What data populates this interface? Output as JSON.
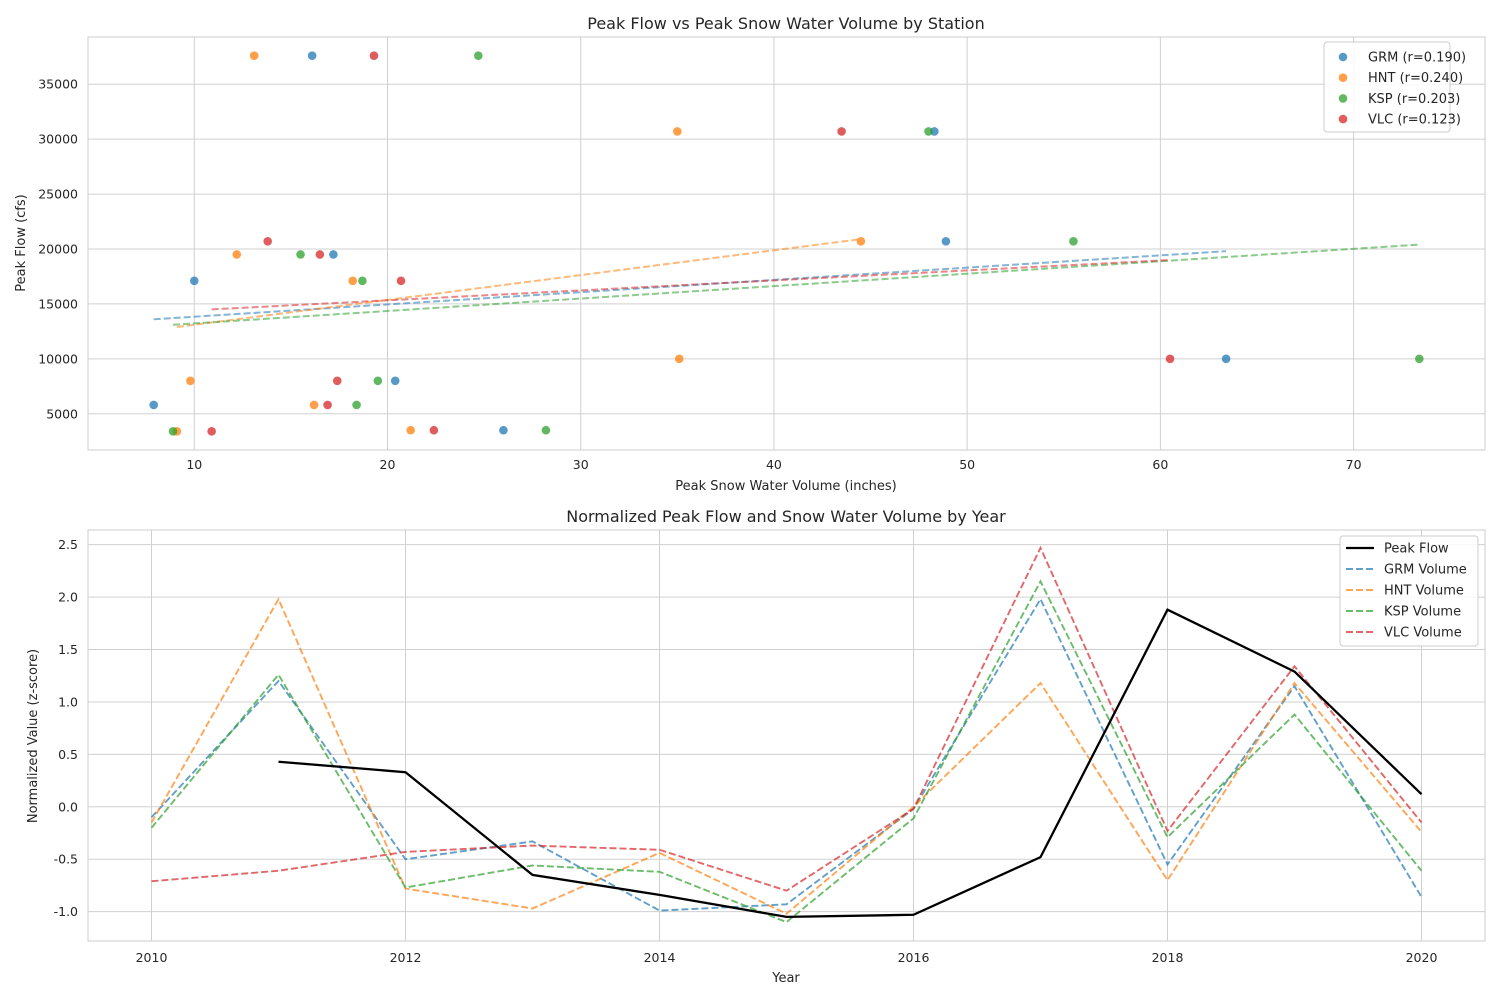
{
  "chart_data": [
    {
      "type": "scatter",
      "title": "Peak Flow vs Peak Snow Water Volume by Station",
      "xlabel": "Peak Snow Water Volume (inches)",
      "ylabel": "Peak Flow (cfs)",
      "xlim": [
        4.5,
        76.8
      ],
      "ylim": [
        1700,
        39300
      ],
      "xticks": [
        10,
        20,
        30,
        40,
        50,
        60,
        70
      ],
      "yticks": [
        5000,
        10000,
        15000,
        20000,
        25000,
        30000,
        35000
      ],
      "grid": true,
      "legend_position": "top-right",
      "series": [
        {
          "name": "GRM (r=0.190)",
          "color": "#1f77b4",
          "points": [
            [
              7.9,
              5800
            ],
            [
              10.0,
              17100
            ],
            [
              16.1,
              37600
            ],
            [
              17.2,
              19500
            ],
            [
              20.4,
              8000
            ],
            [
              26.0,
              3500
            ],
            [
              48.3,
              30700
            ],
            [
              48.9,
              20700
            ],
            [
              63.4,
              10000
            ]
          ],
          "trend": [
            [
              7.9,
              13600
            ],
            [
              63.4,
              19800
            ]
          ]
        },
        {
          "name": "HNT (r=0.240)",
          "color": "#ff7f0e",
          "points": [
            [
              9.1,
              3400
            ],
            [
              9.8,
              8000
            ],
            [
              12.2,
              19500
            ],
            [
              13.1,
              37600
            ],
            [
              16.2,
              5800
            ],
            [
              18.2,
              17100
            ],
            [
              21.2,
              3500
            ],
            [
              35.0,
              30700
            ],
            [
              35.1,
              10000
            ],
            [
              44.5,
              20700
            ]
          ],
          "trend": [
            [
              9.1,
              12900
            ],
            [
              44.5,
              20900
            ]
          ]
        },
        {
          "name": "KSP (r=0.203)",
          "color": "#2ca02c",
          "points": [
            [
              8.9,
              3400
            ],
            [
              15.5,
              19500
            ],
            [
              18.4,
              5800
            ],
            [
              18.7,
              17100
            ],
            [
              19.5,
              8000
            ],
            [
              24.7,
              37600
            ],
            [
              28.2,
              3500
            ],
            [
              48.0,
              30700
            ],
            [
              55.5,
              20700
            ],
            [
              73.4,
              10000
            ]
          ],
          "trend": [
            [
              8.9,
              13100
            ],
            [
              73.4,
              20400
            ]
          ]
        },
        {
          "name": "VLC (r=0.123)",
          "color": "#d62728",
          "points": [
            [
              10.9,
              3400
            ],
            [
              13.8,
              20700
            ],
            [
              16.5,
              19500
            ],
            [
              16.9,
              5800
            ],
            [
              17.4,
              8000
            ],
            [
              19.3,
              37600
            ],
            [
              20.7,
              17100
            ],
            [
              22.4,
              3500
            ],
            [
              43.5,
              30700
            ],
            [
              60.5,
              10000
            ]
          ],
          "trend": [
            [
              10.9,
              14500
            ],
            [
              60.5,
              19000
            ]
          ]
        }
      ]
    },
    {
      "type": "line",
      "title": "Normalized Peak Flow and Snow Water Volume by Year",
      "xlabel": "Year",
      "ylabel": "Normalized Value (z-score)",
      "xlim": [
        2009.5,
        2020.5
      ],
      "ylim": [
        -1.28,
        2.64
      ],
      "xticks": [
        2010,
        2012,
        2014,
        2016,
        2018,
        2020
      ],
      "yticks": [
        -1.0,
        -0.5,
        0.0,
        0.5,
        1.0,
        1.5,
        2.0,
        2.5
      ],
      "grid": true,
      "legend_position": "top-right",
      "series": [
        {
          "name": "Peak Flow",
          "color": "#000000",
          "style": "solid",
          "points": [
            [
              2011,
              0.43
            ],
            [
              2012,
              0.33
            ],
            [
              2013,
              -0.65
            ],
            [
              2014,
              -0.84
            ],
            [
              2015,
              -1.05
            ],
            [
              2016,
              -1.03
            ],
            [
              2017,
              -0.48
            ],
            [
              2018,
              1.88
            ],
            [
              2019,
              1.29
            ],
            [
              2020,
              0.12
            ]
          ]
        },
        {
          "name": "GRM Volume",
          "color": "#1f77b4",
          "style": "dashed",
          "points": [
            [
              2010,
              -0.1
            ],
            [
              2011,
              1.2
            ],
            [
              2012,
              -0.5
            ],
            [
              2013,
              -0.33
            ],
            [
              2014,
              -0.99
            ],
            [
              2015,
              -0.93
            ],
            [
              2016,
              -0.02
            ],
            [
              2017,
              1.98
            ],
            [
              2018,
              -0.55
            ],
            [
              2019,
              1.15
            ],
            [
              2020,
              -0.86
            ]
          ]
        },
        {
          "name": "HNT Volume",
          "color": "#ff7f0e",
          "style": "dashed",
          "points": [
            [
              2010,
              -0.15
            ],
            [
              2011,
              1.98
            ],
            [
              2012,
              -0.78
            ],
            [
              2013,
              -0.97
            ],
            [
              2014,
              -0.44
            ],
            [
              2015,
              -1.02
            ],
            [
              2016,
              0.0
            ],
            [
              2017,
              1.18
            ],
            [
              2018,
              -0.7
            ],
            [
              2019,
              1.18
            ],
            [
              2020,
              -0.24
            ]
          ]
        },
        {
          "name": "KSP Volume",
          "color": "#2ca02c",
          "style": "dashed",
          "points": [
            [
              2010,
              -0.2
            ],
            [
              2011,
              1.26
            ],
            [
              2012,
              -0.77
            ],
            [
              2013,
              -0.56
            ],
            [
              2014,
              -0.62
            ],
            [
              2015,
              -1.1
            ],
            [
              2016,
              -0.11
            ],
            [
              2017,
              2.15
            ],
            [
              2018,
              -0.29
            ],
            [
              2019,
              0.88
            ],
            [
              2020,
              -0.61
            ]
          ]
        },
        {
          "name": "VLC Volume",
          "color": "#d62728",
          "style": "dashed",
          "points": [
            [
              2010,
              -0.71
            ],
            [
              2011,
              -0.61
            ],
            [
              2012,
              -0.43
            ],
            [
              2013,
              -0.37
            ],
            [
              2014,
              -0.41
            ],
            [
              2015,
              -0.8
            ],
            [
              2016,
              -0.02
            ],
            [
              2017,
              2.47
            ],
            [
              2018,
              -0.23
            ],
            [
              2019,
              1.34
            ],
            [
              2020,
              -0.15
            ]
          ]
        }
      ]
    }
  ]
}
